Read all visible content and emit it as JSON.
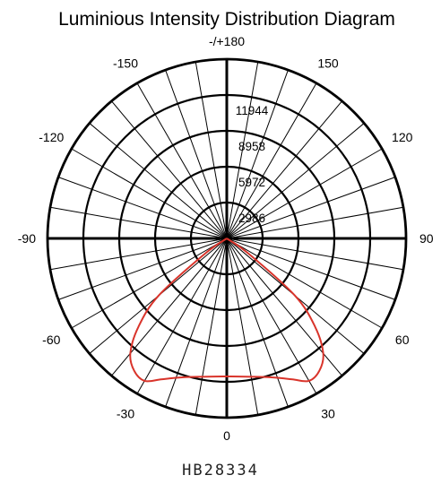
{
  "chart_data": {
    "type": "polar",
    "title": "Luminious Intensity Distribution Diagram",
    "model_code": "HB28334",
    "radial_ticks": [
      2986,
      5972,
      8958,
      11944
    ],
    "radial_tick_labels": [
      "2986",
      "5972",
      "8958",
      "11944"
    ],
    "radial_max": 14930,
    "angle_labels": [
      {
        "angle": 180,
        "text": "-/+180"
      },
      {
        "angle": 150,
        "text": "150"
      },
      {
        "angle": 120,
        "text": "120"
      },
      {
        "angle": 90,
        "text": "90"
      },
      {
        "angle": 60,
        "text": "60"
      },
      {
        "angle": 30,
        "text": "30"
      },
      {
        "angle": 0,
        "text": "0"
      },
      {
        "angle": -30,
        "text": "-30"
      },
      {
        "angle": -60,
        "text": "-60"
      },
      {
        "angle": -90,
        "text": "-90"
      },
      {
        "angle": -120,
        "text": "-120"
      },
      {
        "angle": -150,
        "text": "-150"
      }
    ],
    "spoke_step_deg": 10,
    "series": [
      {
        "color": "#d9342b",
        "angles": [
          -60,
          -55,
          -50,
          -45,
          -40,
          -35,
          -30,
          -25,
          -20,
          -15,
          -10,
          -5,
          0,
          5,
          10,
          15,
          20,
          25,
          30,
          35,
          40,
          45,
          50,
          55,
          60
        ],
        "values": [
          0,
          2200,
          7400,
          10400,
          12500,
          13450,
          13700,
          12950,
          12350,
          11950,
          11700,
          11550,
          11500,
          11550,
          11700,
          11950,
          12350,
          12950,
          13700,
          13450,
          12500,
          10400,
          7400,
          2200,
          0
        ]
      }
    ]
  }
}
